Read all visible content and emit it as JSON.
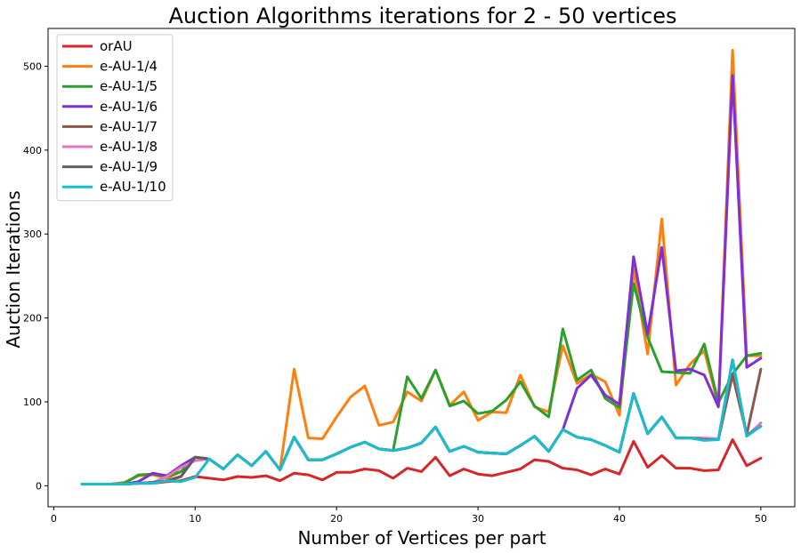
{
  "chart_data": {
    "type": "line",
    "title": "Auction Algorithms iterations for 2 - 50 vertices",
    "xlabel": "Number of Vertices per part",
    "ylabel": "Auction Iterations",
    "xlim": [
      -0.4,
      52.4
    ],
    "ylim": [
      -25,
      545
    ],
    "xticks": [
      0,
      10,
      20,
      30,
      40,
      50
    ],
    "yticks": [
      0,
      100,
      200,
      300,
      400,
      500
    ],
    "grid": false,
    "legend_position": "top-left",
    "x": [
      2,
      3,
      4,
      5,
      6,
      7,
      8,
      9,
      10,
      11,
      12,
      13,
      14,
      15,
      16,
      17,
      18,
      19,
      20,
      21,
      22,
      23,
      24,
      25,
      26,
      27,
      28,
      29,
      30,
      31,
      32,
      33,
      34,
      35,
      36,
      37,
      38,
      39,
      40,
      41,
      42,
      43,
      44,
      45,
      46,
      47,
      48,
      49,
      50
    ],
    "series": [
      {
        "name": "orAU",
        "color": "#d62728",
        "values": [
          2,
          2,
          2,
          2,
          3,
          3,
          5,
          6,
          11,
          9,
          7,
          11,
          10,
          12,
          6,
          15,
          13,
          7,
          16,
          16,
          20,
          18,
          9,
          21,
          17,
          34,
          12,
          20,
          14,
          12,
          16,
          20,
          31,
          29,
          21,
          19,
          13,
          20,
          14,
          53,
          22,
          36,
          21,
          21,
          18,
          19,
          55,
          24,
          33
        ]
      },
      {
        "name": "e-AU-1/4",
        "color": "#ff7f0e",
        "values": [
          2,
          2,
          2,
          4,
          12,
          13,
          9,
          17,
          34,
          32,
          20,
          37,
          24,
          41,
          19,
          139,
          57,
          56,
          82,
          106,
          119,
          72,
          76,
          112,
          101,
          138,
          96,
          112,
          78,
          88,
          87,
          132,
          94,
          88,
          167,
          122,
          133,
          124,
          84,
          258,
          157,
          318,
          120,
          145,
          161,
          96,
          519,
          155,
          155
        ]
      },
      {
        "name": "e-AU-1/5",
        "color": "#2ca02c",
        "values": [
          2,
          2,
          2,
          3,
          13,
          14,
          11,
          17,
          34,
          32,
          20,
          37,
          24,
          41,
          19,
          58,
          31,
          31,
          38,
          46,
          52,
          44,
          42,
          130,
          104,
          138,
          95,
          101,
          86,
          89,
          102,
          124,
          95,
          82,
          187,
          126,
          138,
          104,
          93,
          241,
          177,
          136,
          135,
          134,
          169,
          99,
          133,
          155,
          158
        ]
      },
      {
        "name": "e-AU-1/6",
        "color": "#7f2fd4",
        "values": [
          2,
          2,
          2,
          2,
          5,
          15,
          12,
          24,
          34,
          32,
          20,
          37,
          24,
          41,
          19,
          58,
          31,
          31,
          38,
          46,
          52,
          44,
          42,
          45,
          51,
          70,
          41,
          47,
          40,
          39,
          38,
          48,
          59,
          41,
          67,
          116,
          132,
          108,
          97,
          273,
          181,
          284,
          137,
          139,
          132,
          94,
          489,
          141,
          152
        ]
      },
      {
        "name": "e-AU-1/7",
        "color": "#8c564b",
        "values": [
          2,
          2,
          2,
          2,
          3,
          4,
          6,
          11,
          34,
          32,
          20,
          37,
          24,
          41,
          19,
          58,
          31,
          31,
          38,
          46,
          52,
          44,
          42,
          45,
          51,
          70,
          41,
          47,
          40,
          39,
          38,
          48,
          59,
          41,
          67,
          58,
          55,
          48,
          40,
          110,
          62,
          82,
          57,
          57,
          55,
          55,
          132,
          61,
          139
        ]
      },
      {
        "name": "e-AU-1/8",
        "color": "#e377c2",
        "values": [
          2,
          2,
          2,
          2,
          3,
          4,
          11,
          22,
          30,
          32,
          20,
          37,
          24,
          41,
          19,
          58,
          31,
          31,
          38,
          46,
          52,
          44,
          42,
          45,
          51,
          70,
          41,
          47,
          40,
          39,
          38,
          48,
          59,
          41,
          67,
          58,
          55,
          48,
          40,
          110,
          62,
          82,
          57,
          57,
          57,
          56,
          150,
          59,
          75
        ]
      },
      {
        "name": "e-AU-1/9",
        "color": "#5f5f5f",
        "values": [
          2,
          2,
          2,
          2,
          3,
          4,
          6,
          11,
          34,
          32,
          20,
          37,
          24,
          41,
          19,
          58,
          31,
          31,
          38,
          46,
          52,
          44,
          42,
          45,
          51,
          70,
          41,
          47,
          40,
          39,
          38,
          48,
          59,
          41,
          67,
          58,
          55,
          48,
          40,
          110,
          62,
          82,
          57,
          57,
          55,
          55,
          150,
          60,
          71
        ]
      },
      {
        "name": "e-AU-1/10",
        "color": "#17becf",
        "values": [
          2,
          2,
          2,
          2,
          3,
          3,
          6,
          5,
          10,
          32,
          20,
          37,
          24,
          41,
          19,
          58,
          31,
          31,
          38,
          46,
          52,
          44,
          42,
          45,
          51,
          70,
          41,
          47,
          40,
          39,
          38,
          48,
          59,
          41,
          67,
          58,
          55,
          48,
          40,
          110,
          62,
          82,
          57,
          57,
          54,
          55,
          150,
          59,
          71
        ]
      }
    ]
  }
}
